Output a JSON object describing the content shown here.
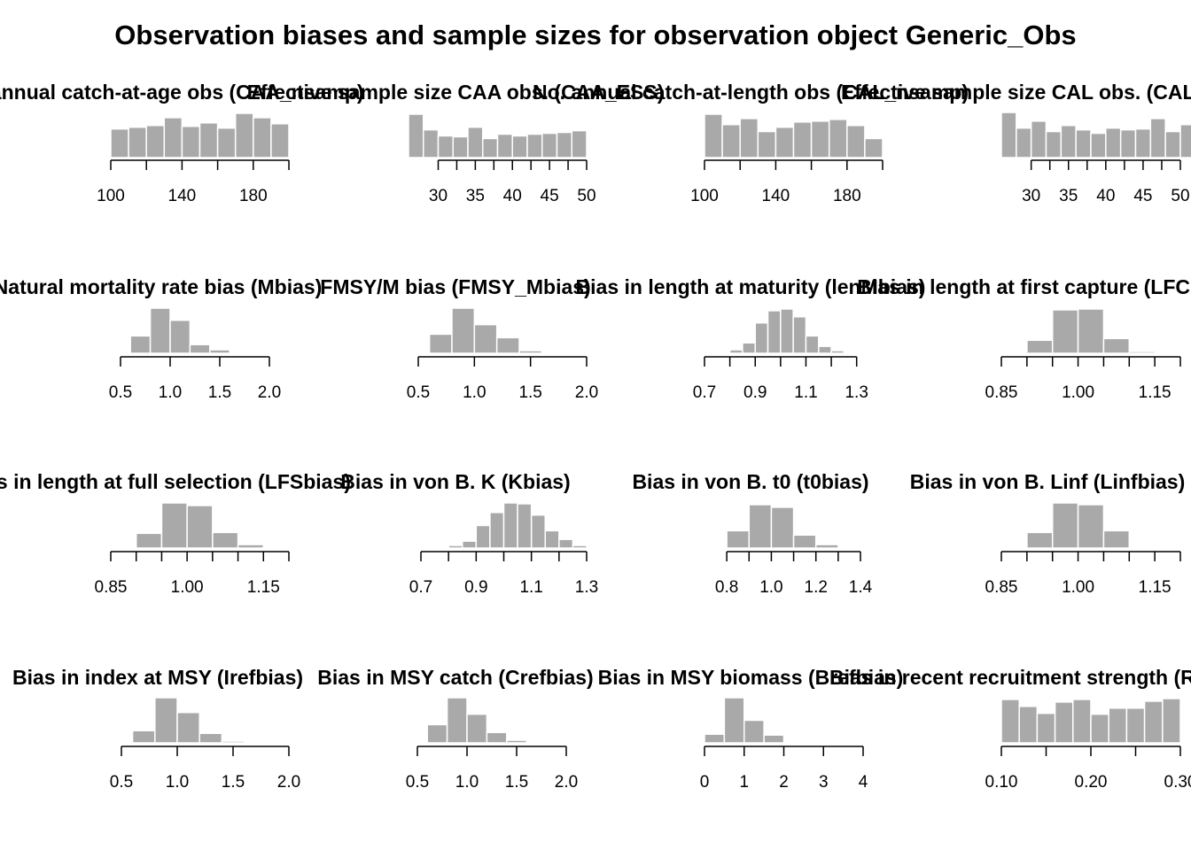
{
  "page": {
    "title": "Observation biases and sample sizes for observation object Generic_Obs"
  },
  "style": {
    "bar_fill": "#a9a9a9",
    "bar_stroke": "#ffffff",
    "axis_color": "#000000"
  },
  "chart_data": [
    {
      "type": "bar",
      "title": "No. annual catch-at-age obs (CAA_nsamp)",
      "x_range": [
        100,
        200
      ],
      "ticks": [
        100,
        120,
        140,
        160,
        180,
        200
      ],
      "tick_labels": [
        "100",
        "",
        "140",
        "",
        "180",
        ""
      ],
      "bins": [
        {
          "x0": 100,
          "x1": 110,
          "y": 33
        },
        {
          "x0": 110,
          "x1": 120,
          "y": 35
        },
        {
          "x0": 120,
          "x1": 130,
          "y": 37
        },
        {
          "x0": 130,
          "x1": 140,
          "y": 46
        },
        {
          "x0": 140,
          "x1": 150,
          "y": 36
        },
        {
          "x0": 150,
          "x1": 160,
          "y": 40
        },
        {
          "x0": 160,
          "x1": 170,
          "y": 34
        },
        {
          "x0": 170,
          "x1": 180,
          "y": 51
        },
        {
          "x0": 180,
          "x1": 190,
          "y": 46
        },
        {
          "x0": 190,
          "x1": 200,
          "y": 39
        }
      ]
    },
    {
      "type": "bar",
      "title": "Effective sample size CAA obs. (CAA_ESS)",
      "x_range": [
        26,
        50
      ],
      "axis_start": 30,
      "ticks": [
        30,
        32.5,
        35,
        37.5,
        40,
        42.5,
        45,
        47.5,
        50
      ],
      "tick_labels": [
        "30",
        "",
        "35",
        "",
        "40",
        "",
        "45",
        "",
        "50"
      ],
      "bins": [
        {
          "x0": 26,
          "x1": 28,
          "y": 50
        },
        {
          "x0": 28,
          "x1": 30,
          "y": 32
        },
        {
          "x0": 30,
          "x1": 32,
          "y": 25
        },
        {
          "x0": 32,
          "x1": 34,
          "y": 24
        },
        {
          "x0": 34,
          "x1": 36,
          "y": 35
        },
        {
          "x0": 36,
          "x1": 38,
          "y": 22
        },
        {
          "x0": 38,
          "x1": 40,
          "y": 27
        },
        {
          "x0": 40,
          "x1": 42,
          "y": 25
        },
        {
          "x0": 42,
          "x1": 44,
          "y": 27
        },
        {
          "x0": 44,
          "x1": 46,
          "y": 28
        },
        {
          "x0": 46,
          "x1": 48,
          "y": 29
        },
        {
          "x0": 48,
          "x1": 50,
          "y": 31
        }
      ]
    },
    {
      "type": "bar",
      "title": "No. annual catch-at-length obs (CAL_nsamp)",
      "x_range": [
        100,
        200
      ],
      "ticks": [
        100,
        120,
        140,
        160,
        180,
        200
      ],
      "tick_labels": [
        "100",
        "",
        "140",
        "",
        "180",
        ""
      ],
      "bins": [
        {
          "x0": 100,
          "x1": 110,
          "y": 50
        },
        {
          "x0": 110,
          "x1": 120,
          "y": 38
        },
        {
          "x0": 120,
          "x1": 130,
          "y": 45
        },
        {
          "x0": 130,
          "x1": 140,
          "y": 30
        },
        {
          "x0": 140,
          "x1": 150,
          "y": 35
        },
        {
          "x0": 150,
          "x1": 160,
          "y": 41
        },
        {
          "x0": 160,
          "x1": 170,
          "y": 42
        },
        {
          "x0": 170,
          "x1": 180,
          "y": 44
        },
        {
          "x0": 180,
          "x1": 190,
          "y": 37
        },
        {
          "x0": 190,
          "x1": 200,
          "y": 22
        }
      ]
    },
    {
      "type": "bar",
      "title": "Effective sample size CAL obs. (CAL_ESS)",
      "x_range": [
        26,
        50
      ],
      "axis_start": 30,
      "ticks": [
        30,
        32.5,
        35,
        37.5,
        40,
        42.5,
        45,
        47.5,
        50
      ],
      "tick_labels": [
        "30",
        "",
        "35",
        "",
        "40",
        "",
        "45",
        "",
        "50"
      ],
      "bins": [
        {
          "x0": 26,
          "x1": 28,
          "y": 52
        },
        {
          "x0": 28,
          "x1": 30,
          "y": 34
        },
        {
          "x0": 30,
          "x1": 32,
          "y": 42
        },
        {
          "x0": 32,
          "x1": 34,
          "y": 30
        },
        {
          "x0": 34,
          "x1": 36,
          "y": 37
        },
        {
          "x0": 36,
          "x1": 38,
          "y": 32
        },
        {
          "x0": 38,
          "x1": 40,
          "y": 28
        },
        {
          "x0": 40,
          "x1": 42,
          "y": 34
        },
        {
          "x0": 42,
          "x1": 44,
          "y": 32
        },
        {
          "x0": 44,
          "x1": 46,
          "y": 33
        },
        {
          "x0": 46,
          "x1": 48,
          "y": 45
        },
        {
          "x0": 48,
          "x1": 50,
          "y": 30
        },
        {
          "x0": 50,
          "x1": 52,
          "y": 38
        }
      ]
    },
    {
      "type": "bar",
      "title": "Natural mortality rate bias (Mbias)",
      "x_range": [
        0.5,
        2.0
      ],
      "ticks": [
        0.5,
        1.0,
        1.5,
        2.0
      ],
      "tick_labels": [
        "0.5",
        "1.0",
        "1.5",
        "2.0"
      ],
      "bins": [
        {
          "x0": 0.6,
          "x1": 0.8,
          "y": 20
        },
        {
          "x0": 0.8,
          "x1": 1.0,
          "y": 52
        },
        {
          "x0": 1.0,
          "x1": 1.2,
          "y": 38
        },
        {
          "x0": 1.2,
          "x1": 1.4,
          "y": 10
        },
        {
          "x0": 1.4,
          "x1": 1.6,
          "y": 4
        },
        {
          "x0": 1.6,
          "x1": 1.8,
          "y": 0.5
        }
      ]
    },
    {
      "type": "bar",
      "title": "FMSY/M bias (FMSY_Mbias)",
      "x_range": [
        0.5,
        2.0
      ],
      "ticks": [
        0.5,
        1.0,
        1.5,
        2.0
      ],
      "tick_labels": [
        "0.5",
        "1.0",
        "1.5",
        "2.0"
      ],
      "bins": [
        {
          "x0": 0.6,
          "x1": 0.8,
          "y": 22
        },
        {
          "x0": 0.8,
          "x1": 1.0,
          "y": 52
        },
        {
          "x0": 1.0,
          "x1": 1.2,
          "y": 33
        },
        {
          "x0": 1.2,
          "x1": 1.4,
          "y": 18
        },
        {
          "x0": 1.4,
          "x1": 1.6,
          "y": 3
        }
      ]
    },
    {
      "type": "bar",
      "title": "Bias in length at maturity (lenMbias)",
      "x_range": [
        0.7,
        1.35
      ],
      "ticks": [
        0.7,
        0.8,
        0.9,
        1.0,
        1.1,
        1.2,
        1.3
      ],
      "tick_labels": [
        "0.7",
        "",
        "0.9",
        "",
        "1.1",
        "",
        "1.3"
      ],
      "bins": [
        {
          "x0": 0.7,
          "x1": 0.75,
          "y": 0.5
        },
        {
          "x0": 0.75,
          "x1": 0.8,
          "y": 1
        },
        {
          "x0": 0.8,
          "x1": 0.85,
          "y": 4
        },
        {
          "x0": 0.85,
          "x1": 0.9,
          "y": 12
        },
        {
          "x0": 0.9,
          "x1": 0.95,
          "y": 35
        },
        {
          "x0": 0.95,
          "x1": 1.0,
          "y": 49
        },
        {
          "x0": 1.0,
          "x1": 1.05,
          "y": 51
        },
        {
          "x0": 1.05,
          "x1": 1.1,
          "y": 42
        },
        {
          "x0": 1.1,
          "x1": 1.15,
          "y": 20
        },
        {
          "x0": 1.15,
          "x1": 1.2,
          "y": 8
        },
        {
          "x0": 1.2,
          "x1": 1.25,
          "y": 3
        },
        {
          "x0": 1.25,
          "x1": 1.3,
          "y": 1
        },
        {
          "x0": 1.3,
          "x1": 1.35,
          "y": 0.5
        }
      ]
    },
    {
      "type": "bar",
      "title": "Bias in length at first capture (LFCbias)",
      "x_range": [
        0.85,
        1.2
      ],
      "ticks": [
        0.85,
        0.9,
        0.95,
        1.0,
        1.05,
        1.1,
        1.15,
        1.2
      ],
      "tick_labels": [
        "0.85",
        "",
        "",
        "1.00",
        "",
        "",
        "1.15",
        ""
      ],
      "bins": [
        {
          "x0": 0.85,
          "x1": 0.9,
          "y": 0.5
        },
        {
          "x0": 0.9,
          "x1": 0.95,
          "y": 15
        },
        {
          "x0": 0.95,
          "x1": 1.0,
          "y": 50
        },
        {
          "x0": 1.0,
          "x1": 1.05,
          "y": 51
        },
        {
          "x0": 1.05,
          "x1": 1.1,
          "y": 17
        },
        {
          "x0": 1.1,
          "x1": 1.15,
          "y": 2
        },
        {
          "x0": 1.15,
          "x1": 1.2,
          "y": 0.5
        }
      ]
    },
    {
      "type": "bar",
      "title": "Bias in length at full selection (LFSbias)",
      "x_range": [
        0.85,
        1.2
      ],
      "ticks": [
        0.85,
        0.9,
        0.95,
        1.0,
        1.05,
        1.1,
        1.15,
        1.2
      ],
      "tick_labels": [
        "0.85",
        "",
        "",
        "1.00",
        "",
        "",
        "1.15",
        ""
      ],
      "bins": [
        {
          "x0": 0.85,
          "x1": 0.9,
          "y": 0.5
        },
        {
          "x0": 0.9,
          "x1": 0.95,
          "y": 17
        },
        {
          "x0": 0.95,
          "x1": 1.0,
          "y": 52
        },
        {
          "x0": 1.0,
          "x1": 1.05,
          "y": 49
        },
        {
          "x0": 1.05,
          "x1": 1.1,
          "y": 18
        },
        {
          "x0": 1.1,
          "x1": 1.15,
          "y": 4
        },
        {
          "x0": 1.15,
          "x1": 1.2,
          "y": 0.5
        }
      ]
    },
    {
      "type": "bar",
      "title": "Bias in von B. K (Kbias)",
      "x_range": [
        0.7,
        1.3
      ],
      "ticks": [
        0.7,
        0.8,
        0.9,
        1.0,
        1.1,
        1.2,
        1.3
      ],
      "tick_labels": [
        "0.7",
        "",
        "0.9",
        "",
        "1.1",
        "",
        "1.3"
      ],
      "bins": [
        {
          "x0": 0.75,
          "x1": 0.8,
          "y": 1
        },
        {
          "x0": 0.8,
          "x1": 0.85,
          "y": 3
        },
        {
          "x0": 0.85,
          "x1": 0.9,
          "y": 8
        },
        {
          "x0": 0.9,
          "x1": 0.95,
          "y": 26
        },
        {
          "x0": 0.95,
          "x1": 1.0,
          "y": 41
        },
        {
          "x0": 1.0,
          "x1": 1.05,
          "y": 52
        },
        {
          "x0": 1.05,
          "x1": 1.1,
          "y": 51
        },
        {
          "x0": 1.1,
          "x1": 1.15,
          "y": 38
        },
        {
          "x0": 1.15,
          "x1": 1.2,
          "y": 20
        },
        {
          "x0": 1.2,
          "x1": 1.25,
          "y": 10
        },
        {
          "x0": 1.25,
          "x1": 1.3,
          "y": 3
        }
      ]
    },
    {
      "type": "bar",
      "title": "Bias in von B. t0 (t0bias)",
      "x_range": [
        0.7,
        1.4
      ],
      "axis_start": 0.8,
      "ticks": [
        0.8,
        0.9,
        1.0,
        1.1,
        1.2,
        1.3,
        1.4
      ],
      "tick_labels": [
        "0.8",
        "",
        "1.0",
        "",
        "1.2",
        "",
        "1.4"
      ],
      "bins": [
        {
          "x0": 0.7,
          "x1": 0.8,
          "y": 0.5
        },
        {
          "x0": 0.8,
          "x1": 0.9,
          "y": 20
        },
        {
          "x0": 0.9,
          "x1": 1.0,
          "y": 50
        },
        {
          "x0": 1.0,
          "x1": 1.1,
          "y": 47
        },
        {
          "x0": 1.1,
          "x1": 1.2,
          "y": 15
        },
        {
          "x0": 1.2,
          "x1": 1.3,
          "y": 4
        }
      ]
    },
    {
      "type": "bar",
      "title": "Bias in von B. Linf (Linfbias)",
      "x_range": [
        0.85,
        1.2
      ],
      "ticks": [
        0.85,
        0.9,
        0.95,
        1.0,
        1.05,
        1.1,
        1.15,
        1.2
      ],
      "tick_labels": [
        "0.85",
        "",
        "",
        "1.00",
        "",
        "",
        "1.15",
        ""
      ],
      "bins": [
        {
          "x0": 0.85,
          "x1": 0.9,
          "y": 0.5
        },
        {
          "x0": 0.9,
          "x1": 0.95,
          "y": 18
        },
        {
          "x0": 0.95,
          "x1": 1.0,
          "y": 52
        },
        {
          "x0": 1.0,
          "x1": 1.05,
          "y": 50
        },
        {
          "x0": 1.05,
          "x1": 1.1,
          "y": 20
        },
        {
          "x0": 1.1,
          "x1": 1.15,
          "y": 0.5
        }
      ]
    },
    {
      "type": "bar",
      "title": "Bias in index at MSY (Irefbias)",
      "x_range": [
        0.5,
        2.0
      ],
      "ticks": [
        0.5,
        1.0,
        1.5,
        2.0
      ],
      "tick_labels": [
        "0.5",
        "1.0",
        "1.5",
        "2.0"
      ],
      "bins": [
        {
          "x0": 0.6,
          "x1": 0.8,
          "y": 14
        },
        {
          "x0": 0.8,
          "x1": 1.0,
          "y": 52
        },
        {
          "x0": 1.0,
          "x1": 1.2,
          "y": 35
        },
        {
          "x0": 1.2,
          "x1": 1.4,
          "y": 11
        },
        {
          "x0": 1.4,
          "x1": 1.6,
          "y": 2
        }
      ]
    },
    {
      "type": "bar",
      "title": "Bias in MSY catch (Crefbias)",
      "x_range": [
        0.5,
        2.0
      ],
      "ticks": [
        0.5,
        1.0,
        1.5,
        2.0
      ],
      "tick_labels": [
        "0.5",
        "1.0",
        "1.5",
        "2.0"
      ],
      "bins": [
        {
          "x0": 0.6,
          "x1": 0.8,
          "y": 21
        },
        {
          "x0": 0.8,
          "x1": 1.0,
          "y": 52
        },
        {
          "x0": 1.0,
          "x1": 1.2,
          "y": 33
        },
        {
          "x0": 1.2,
          "x1": 1.4,
          "y": 12
        },
        {
          "x0": 1.4,
          "x1": 1.6,
          "y": 3
        }
      ]
    },
    {
      "type": "bar",
      "title": "Bias in MSY biomass (Brefbias)",
      "x_range": [
        0,
        4
      ],
      "ticks": [
        0,
        1,
        2,
        3,
        4
      ],
      "tick_labels": [
        "0",
        "1",
        "2",
        "3",
        "4"
      ],
      "bins": [
        {
          "x0": 0,
          "x1": 0.5,
          "y": 10
        },
        {
          "x0": 0.5,
          "x1": 1.0,
          "y": 52
        },
        {
          "x0": 1.0,
          "x1": 1.5,
          "y": 26
        },
        {
          "x0": 1.5,
          "x1": 2.0,
          "y": 9
        }
      ]
    },
    {
      "type": "bar",
      "title": "Bias in recent recruitment strength (Recbias)",
      "x_range": [
        0.1,
        0.3
      ],
      "ticks": [
        0.1,
        0.15,
        0.2,
        0.25,
        0.3
      ],
      "tick_labels": [
        "0.10",
        "",
        "0.20",
        "",
        "0.30"
      ],
      "bins": [
        {
          "x0": 0.1,
          "x1": 0.12,
          "y": 50
        },
        {
          "x0": 0.12,
          "x1": 0.14,
          "y": 42
        },
        {
          "x0": 0.14,
          "x1": 0.16,
          "y": 34
        },
        {
          "x0": 0.16,
          "x1": 0.18,
          "y": 47
        },
        {
          "x0": 0.18,
          "x1": 0.2,
          "y": 50
        },
        {
          "x0": 0.2,
          "x1": 0.22,
          "y": 33
        },
        {
          "x0": 0.22,
          "x1": 0.24,
          "y": 40
        },
        {
          "x0": 0.24,
          "x1": 0.26,
          "y": 40
        },
        {
          "x0": 0.26,
          "x1": 0.28,
          "y": 48
        },
        {
          "x0": 0.28,
          "x1": 0.3,
          "y": 51
        }
      ]
    }
  ]
}
